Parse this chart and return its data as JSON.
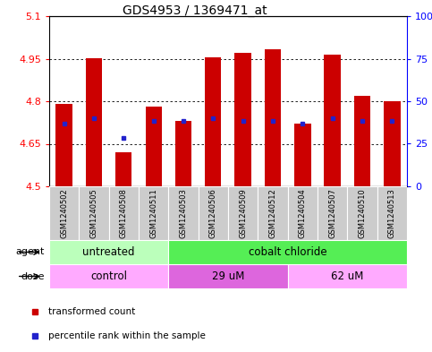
{
  "title": "GDS4953 / 1369471_at",
  "samples": [
    "GSM1240502",
    "GSM1240505",
    "GSM1240508",
    "GSM1240511",
    "GSM1240503",
    "GSM1240506",
    "GSM1240509",
    "GSM1240512",
    "GSM1240504",
    "GSM1240507",
    "GSM1240510",
    "GSM1240513"
  ],
  "transformed_count": [
    4.79,
    4.95,
    4.62,
    4.78,
    4.73,
    4.955,
    4.97,
    4.982,
    4.72,
    4.965,
    4.82,
    4.8
  ],
  "percentile_rank_val": [
    4.72,
    4.74,
    4.67,
    4.73,
    4.73,
    4.74,
    4.73,
    4.73,
    4.72,
    4.74,
    4.73,
    4.73
  ],
  "ymin": 4.5,
  "ymax": 5.1,
  "yticks": [
    4.5,
    4.65,
    4.8,
    4.95,
    5.1
  ],
  "y2ticks_vals": [
    0,
    25,
    50,
    75,
    100
  ],
  "y2labels": [
    "0",
    "25",
    "50",
    "75",
    "100%"
  ],
  "bar_color": "#cc0000",
  "dot_color": "#2222cc",
  "agent_groups": [
    {
      "label": "untreated",
      "start": 0,
      "end": 4,
      "color": "#bbffbb"
    },
    {
      "label": "cobalt chloride",
      "start": 4,
      "end": 12,
      "color": "#55ee55"
    }
  ],
  "dose_groups": [
    {
      "label": "control",
      "start": 0,
      "end": 4,
      "color": "#ffaaff"
    },
    {
      "label": "29 uM",
      "start": 4,
      "end": 8,
      "color": "#dd66dd"
    },
    {
      "label": "62 uM",
      "start": 8,
      "end": 12,
      "color": "#ffaaff"
    }
  ],
  "legend_red_label": "transformed count",
  "legend_blue_label": "percentile rank within the sample",
  "agent_row_label": "agent",
  "dose_row_label": "dose",
  "sample_bg_color": "#cccccc"
}
